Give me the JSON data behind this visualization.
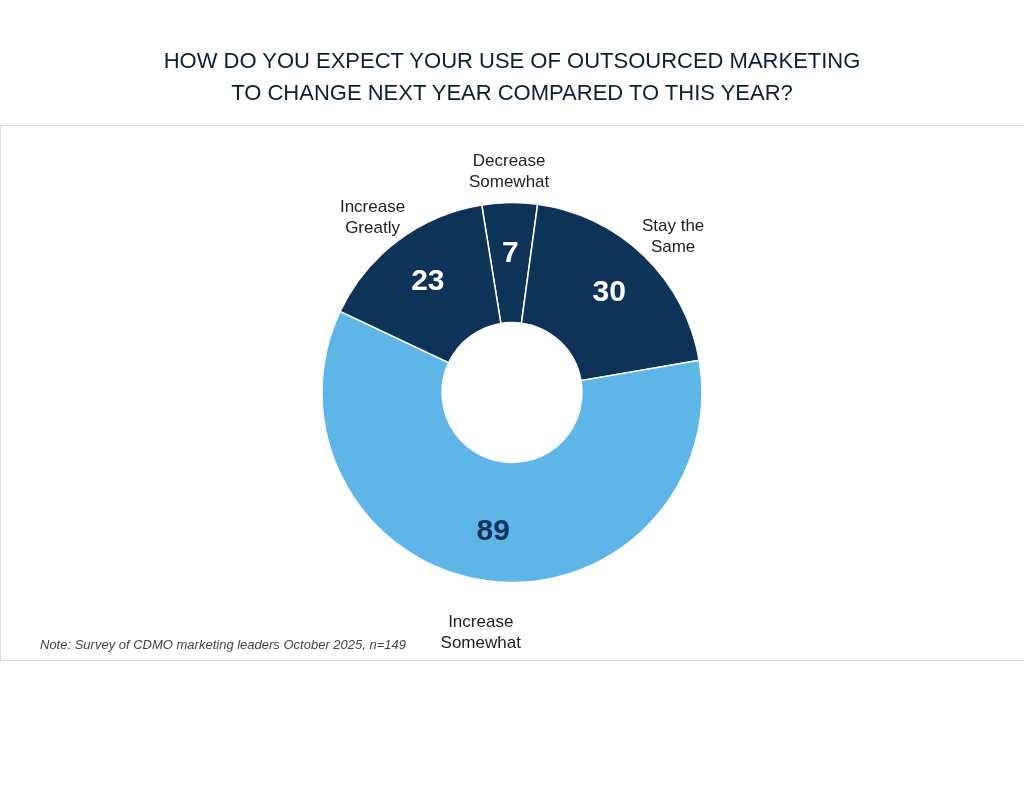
{
  "chart_data": {
    "type": "donut",
    "title": "HOW DO YOU EXPECT YOUR USE OF OUTSOURCED MARKETING\nTO CHANGE NEXT YEAR COMPARED TO THIS YEAR?",
    "categories": [
      "Decrease\nSomewhat",
      "Stay the\nSame",
      "Increase\nSomewhat",
      "Increase\nGreatly"
    ],
    "values": [
      7,
      30,
      89,
      23
    ],
    "colors": [
      "#0d3358",
      "#0d3358",
      "#5db5e8",
      "#0d3358"
    ],
    "data_labels": true,
    "legend": false,
    "annotations": [
      "Note: Survey of CDMO marketing leaders October 2025, n=149"
    ]
  }
}
